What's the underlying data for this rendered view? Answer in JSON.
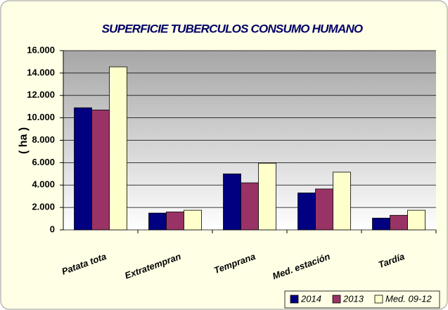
{
  "chart_data": {
    "type": "bar",
    "title": "SUPERFICIE TUBERCULOS CONSUMO HUMANO",
    "y_label": "( ha )",
    "categories": [
      "Patata tota",
      "Extratempran",
      "Temprana",
      "Med. estación",
      "Tardía"
    ],
    "series": [
      {
        "name": "2014",
        "color": "#000080",
        "values": [
          10900,
          1500,
          5000,
          3300,
          1050
        ]
      },
      {
        "name": "2013",
        "color": "#993366",
        "values": [
          10700,
          1600,
          4200,
          3650,
          1300
        ]
      },
      {
        "name": "Med. 09-12",
        "color": "#ffffcc",
        "values": [
          14550,
          1750,
          5950,
          5150,
          1750
        ]
      }
    ],
    "ylim": [
      0,
      16000
    ],
    "yticks": [
      0,
      {
        "value": 2000,
        "label": "2.000"
      },
      {
        "value": 4000,
        "label": "4.000"
      },
      {
        "value": 6000,
        "label": "6.000"
      },
      {
        "value": 8000,
        "label": "8.000"
      },
      {
        "value": 10000,
        "label": "10.000"
      },
      {
        "value": 12000,
        "label": "12.000"
      },
      {
        "value": 14000,
        "label": "14.000"
      },
      {
        "value": 16000,
        "label": "16.000"
      }
    ],
    "grid": true,
    "legend": "bottom-right"
  }
}
